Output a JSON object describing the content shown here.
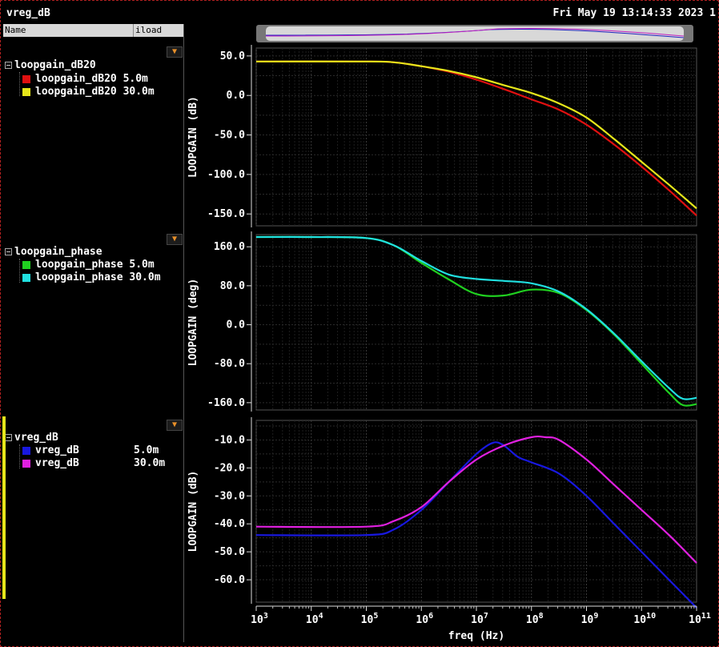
{
  "window": {
    "title": "vreg_dB",
    "datetime": "Fri May 19 13:14:33 2023 1"
  },
  "sidebar": {
    "col_name": "Name",
    "col_param": "iload",
    "groups": [
      {
        "title": "loopgain_dB20",
        "items": [
          {
            "label": "loopgain_dB20",
            "value": "5.0m",
            "color": "#e01010"
          },
          {
            "label": "loopgain_dB20",
            "value": "30.0m",
            "color": "#e6e61a"
          }
        ]
      },
      {
        "title": "loopgain_phase",
        "items": [
          {
            "label": "loopgain_phase",
            "value": "5.0m",
            "color": "#20d020"
          },
          {
            "label": "loopgain_phase",
            "value": "30.0m",
            "color": "#20e0e0"
          }
        ]
      },
      {
        "title": "vreg_dB",
        "items": [
          {
            "label": "vreg_dB",
            "value": "5.0m",
            "color": "#1818e0"
          },
          {
            "label": "vreg_dB",
            "value": "30.0m",
            "color": "#e020e0"
          }
        ]
      }
    ]
  },
  "chart_data": [
    {
      "type": "line",
      "ylabel": "LOOPGAIN (dB)",
      "xscale": "log",
      "xlim": [
        1000,
        100000000000
      ],
      "ylim": [
        -165,
        60
      ],
      "yticks": [
        "50.0",
        "0.0",
        "-50.0",
        "-100.0",
        "-150.0"
      ],
      "ytick_values": [
        50,
        0,
        -50,
        -100,
        -150
      ],
      "grid": true,
      "series": [
        {
          "name": "loopgain_dB20 5.0m",
          "color": "#e01010",
          "x": [
            1000,
            100000,
            316000,
            1000000,
            3160000,
            10000000,
            31600000,
            100000000,
            316000000,
            1000000000,
            3160000000,
            10000000000,
            31600000000,
            100000000000
          ],
          "y": [
            43,
            43,
            42,
            37,
            30,
            20,
            8,
            -5,
            -18,
            -37,
            -62,
            -90,
            -120,
            -152
          ]
        },
        {
          "name": "loopgain_dB20 30.0m",
          "color": "#e6e61a",
          "x": [
            1000,
            100000,
            316000,
            1000000,
            3160000,
            10000000,
            31600000,
            100000000,
            316000000,
            1000000000,
            3160000000,
            10000000000,
            31600000000,
            100000000000
          ],
          "y": [
            43,
            43,
            42,
            37,
            31,
            23,
            13,
            3,
            -10,
            -28,
            -55,
            -84,
            -113,
            -143
          ]
        }
      ]
    },
    {
      "type": "line",
      "ylabel": "LOOPGAIN (deg)",
      "xscale": "log",
      "xlim": [
        1000,
        100000000000
      ],
      "ylim": [
        -175,
        185
      ],
      "yticks": [
        "160.0",
        "80.0",
        "0.0",
        "-80.0",
        "-160.0"
      ],
      "ytick_values": [
        160,
        80,
        0,
        -80,
        -160
      ],
      "grid": true,
      "series": [
        {
          "name": "loopgain_phase 5.0m",
          "color": "#20d020",
          "x": [
            1000,
            10000,
            100000,
            316000,
            1000000,
            3160000,
            10000000,
            31600000,
            100000000,
            316000000,
            1000000000,
            3160000000,
            10000000000,
            31600000000,
            56200000000,
            100000000000
          ],
          "y": [
            180,
            180,
            178,
            163,
            127,
            93,
            63,
            60,
            72,
            65,
            30,
            -20,
            -80,
            -140,
            -165,
            -163
          ]
        },
        {
          "name": "loopgain_phase 30.0m",
          "color": "#20e0e0",
          "x": [
            1000,
            10000,
            100000,
            316000,
            1000000,
            3160000,
            10000000,
            31600000,
            100000000,
            316000000,
            1000000000,
            3160000000,
            10000000000,
            31600000000,
            56200000000,
            100000000000
          ],
          "y": [
            180,
            180,
            178,
            163,
            131,
            103,
            94,
            90,
            85,
            68,
            32,
            -18,
            -75,
            -130,
            -152,
            -150
          ]
        }
      ]
    },
    {
      "type": "line",
      "ylabel": "LOOPGAIN (dB)",
      "xlabel": "freq (Hz)",
      "xscale": "log",
      "xlim": [
        1000,
        100000000000
      ],
      "ylim": [
        -68,
        -3
      ],
      "yticks": [
        "-10.0",
        "-20.0",
        "-30.0",
        "-40.0",
        "-50.0",
        "-60.0"
      ],
      "ytick_values": [
        -10,
        -20,
        -30,
        -40,
        -50,
        -60
      ],
      "xticks": [
        "10",
        "10",
        "10",
        "10",
        "10",
        "10",
        "10",
        "10",
        "10"
      ],
      "xtick_exps": [
        "3",
        "4",
        "5",
        "6",
        "7",
        "8",
        "9",
        "10",
        "11"
      ],
      "xtick_values": [
        1000,
        10000,
        100000,
        1000000,
        10000000,
        100000000,
        1000000000,
        10000000000,
        100000000000
      ],
      "grid": true,
      "series": [
        {
          "name": "vreg_dB 5.0m",
          "color": "#1818e0",
          "x": [
            1000,
            100000,
            316000,
            1000000,
            3160000,
            10000000,
            20000000,
            31600000,
            56200000,
            100000000,
            316000000,
            1000000000,
            3160000000,
            10000000000,
            31600000000,
            100000000000
          ],
          "y": [
            -44,
            -44,
            -42,
            -35,
            -25,
            -15,
            -11,
            -12,
            -16,
            -18,
            -22,
            -30,
            -40,
            -50,
            -60,
            -70
          ]
        },
        {
          "name": "vreg_dB 30.0m",
          "color": "#e020e0",
          "x": [
            1000,
            100000,
            316000,
            1000000,
            3160000,
            10000000,
            31600000,
            100000000,
            178000000,
            316000000,
            1000000000,
            3160000000,
            10000000000,
            31600000000,
            100000000000
          ],
          "y": [
            -41,
            -41,
            -39,
            -34,
            -25,
            -17,
            -12,
            -9,
            -9,
            -10,
            -17,
            -26,
            -35,
            -44,
            -54
          ]
        }
      ]
    }
  ]
}
